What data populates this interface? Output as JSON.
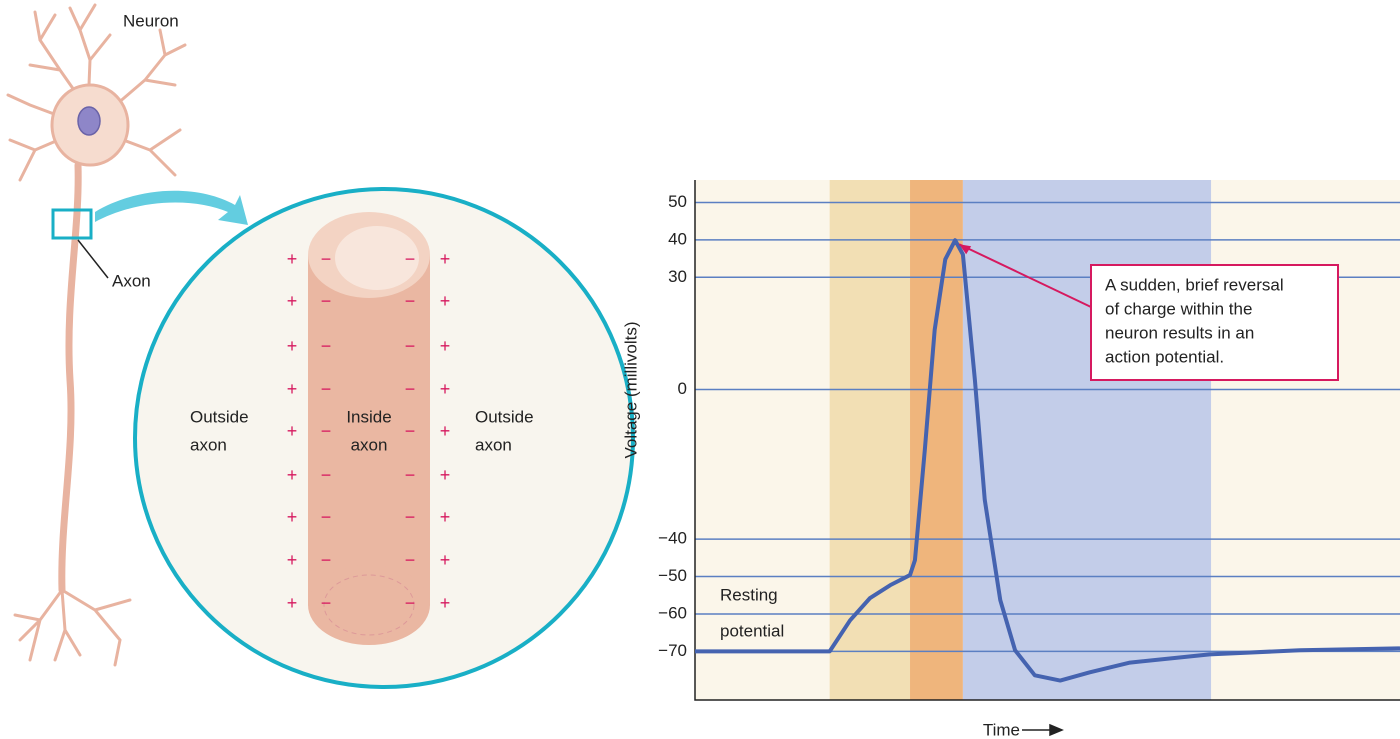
{
  "diagram": {
    "neuron_label": "Neuron",
    "axon_label": "Axon",
    "outside_left": [
      "Outside",
      "axon"
    ],
    "inside": [
      "Inside",
      "axon"
    ],
    "outside_right": [
      "Outside",
      "axon"
    ],
    "outside_charge": "+",
    "inside_charge": "−"
  },
  "chart_data": {
    "type": "line",
    "ylabel": "Voltage (millivolts)",
    "xlabel": "Time",
    "xlim": [
      0,
      100
    ],
    "ylim": [
      -83,
      56
    ],
    "yticks": [
      50,
      40,
      30,
      0,
      {
        "value": -40,
        "label": "−40"
      },
      {
        "value": -50,
        "label": "−50"
      },
      {
        "value": -60,
        "label": "−60"
      },
      {
        "value": -70,
        "label": "−70"
      }
    ],
    "grid": true,
    "grid_color": "#5b7fc2",
    "background": "#fbf6ea",
    "color": "#4563b0",
    "bands": [
      {
        "start": 19.1,
        "end": 30.5,
        "color": "#f2dfb4"
      },
      {
        "start": 30.5,
        "end": 38.0,
        "color": "#efb57c"
      },
      {
        "start": 38.0,
        "end": 73.2,
        "color": "#c3cde9"
      }
    ],
    "x": [
      0,
      19.1,
      22.0,
      24.8,
      27.7,
      30.5,
      31.2,
      32.6,
      34.0,
      35.5,
      36.9,
      38.0,
      39.7,
      41.1,
      43.3,
      45.4,
      48.2,
      51.8,
      56.0,
      61.7,
      73.0,
      85.8,
      100
    ],
    "values": [
      -70,
      -70,
      -61.7,
      -55.8,
      -52.3,
      -49.6,
      -45.6,
      -16.1,
      16.0,
      34.8,
      39.9,
      36.1,
      2.6,
      -29.5,
      -56.3,
      -69.7,
      -76.4,
      -77.8,
      -75.6,
      -73.0,
      -70.8,
      -69.7,
      -69.2
    ],
    "annotation": [
      "A sudden, brief reversal",
      "of charge within the",
      "neuron results in an",
      "action potential."
    ],
    "resting_label": [
      "Resting",
      "potential"
    ]
  }
}
